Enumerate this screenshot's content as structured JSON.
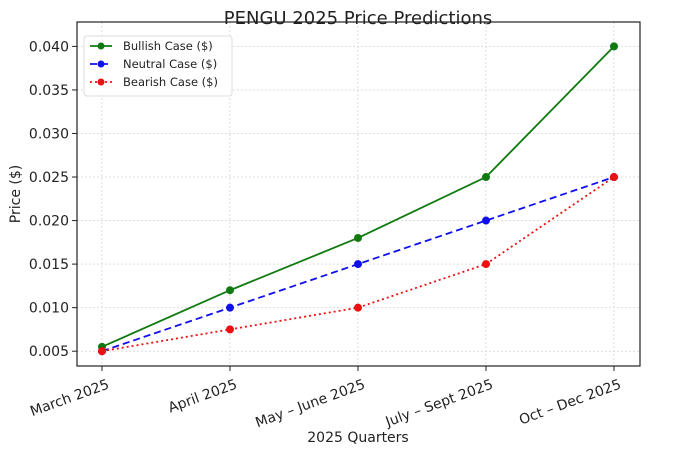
{
  "chart_data": {
    "type": "line",
    "title": "PENGU 2025 Price Predictions",
    "xlabel": "2025 Quarters",
    "ylabel": "Price ($)",
    "categories": [
      "March 2025",
      "April 2025",
      "May – June 2025",
      "July – Sept 2025",
      "Oct – Dec 2025"
    ],
    "yticks": [
      "0.005",
      "0.010",
      "0.015",
      "0.020",
      "0.025",
      "0.030",
      "0.035",
      "0.040"
    ],
    "ylim": [
      0.0033,
      0.0428
    ],
    "grid": true,
    "legend_position": "top-left",
    "series": [
      {
        "name": "Bullish Case ($)",
        "values": [
          0.0055,
          0.012,
          0.018,
          0.025,
          0.04
        ],
        "color": "#107a10",
        "dash": "solid"
      },
      {
        "name": "Neutral Case ($)",
        "values": [
          0.005,
          0.01,
          0.015,
          0.02,
          0.025
        ],
        "color": "#1010ee",
        "dash": "dashed"
      },
      {
        "name": "Bearish Case ($)",
        "values": [
          0.005,
          0.0075,
          0.01,
          0.015,
          0.025
        ],
        "color": "#ee1010",
        "dash": "dotted"
      }
    ]
  }
}
